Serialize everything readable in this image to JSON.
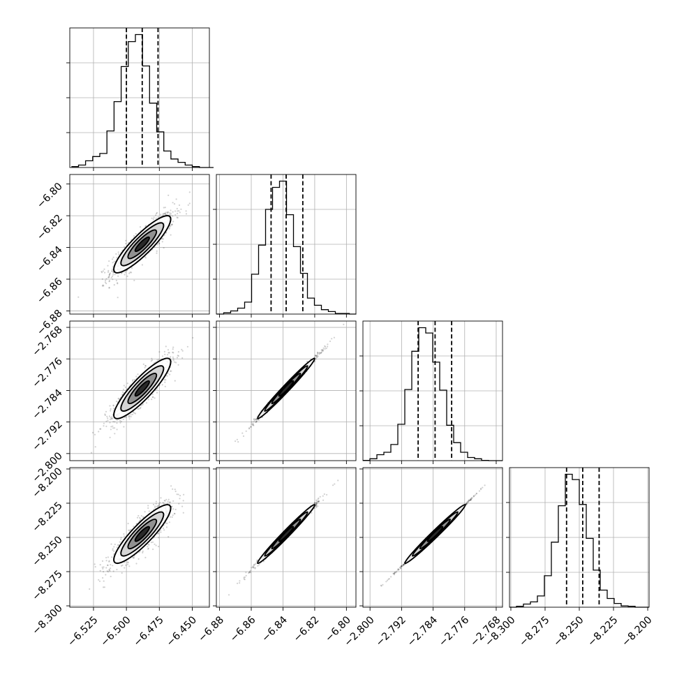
{
  "chart_data": {
    "type": "corner",
    "grid": true,
    "parameters": [
      {
        "ticks": [
          -6.525,
          -6.5,
          -6.475,
          -6.45
        ],
        "tick_labels": [
          "−6.525",
          "−6.500",
          "−6.475",
          "−6.450"
        ],
        "range": [
          -6.543,
          -6.437
        ],
        "quantiles": [
          -6.5,
          -6.488,
          -6.476
        ]
      },
      {
        "ticks": [
          -6.88,
          -6.86,
          -6.84,
          -6.82,
          -6.8
        ],
        "tick_labels": [
          "−6.88",
          "−6.86",
          "−6.84",
          "−6.82",
          "−6.80"
        ],
        "range": [
          -6.882,
          -6.794
        ],
        "quantiles": [
          -6.8475,
          -6.838,
          -6.8275
        ]
      },
      {
        "ticks": [
          -2.8,
          -2.792,
          -2.784,
          -2.776,
          -2.768
        ],
        "tick_labels": [
          "−2.800",
          "−2.792",
          "−2.784",
          "−2.776",
          "−2.768"
        ],
        "range": [
          -2.8018,
          -2.7664
        ],
        "quantiles": [
          -2.7878,
          -2.7835,
          -2.7793
        ]
      },
      {
        "ticks": [
          -8.3,
          -8.275,
          -8.25,
          -8.225,
          -8.2
        ],
        "tick_labels": [
          "−8.300",
          "−8.275",
          "−8.250",
          "−8.225",
          "−8.200"
        ],
        "range": [
          -8.301,
          -8.199
        ],
        "quantiles": [
          -8.2593,
          -8.2475,
          -8.2355
        ]
      }
    ],
    "histograms": [
      {
        "bins": [
          -6.5418,
          -6.5364,
          -6.531,
          -6.5256,
          -6.5202,
          -6.5148,
          -6.5094,
          -6.504,
          -6.4986,
          -6.4932,
          -6.4878,
          -6.4824,
          -6.477,
          -6.4716,
          -6.4662,
          -6.4608,
          -6.4554,
          -6.45,
          -6.4446,
          -6.4392,
          -6.4338
        ],
        "counts": [
          3,
          8,
          22,
          36,
          46,
          120,
          216,
          331,
          413,
          436,
          333,
          211,
          117,
          54,
          28,
          17,
          8,
          3,
          0,
          0
        ]
      },
      {
        "bins": [
          -6.8818,
          -6.8774,
          -6.873,
          -6.8686,
          -6.8642,
          -6.8598,
          -6.8554,
          -6.851,
          -6.8466,
          -6.8422,
          -6.8378,
          -6.8334,
          -6.829,
          -6.8246,
          -6.8202,
          -6.8158,
          -6.8114,
          -6.807,
          -6.8026,
          -6.7982,
          -6.7938
        ],
        "counts": [
          0,
          4,
          10,
          19,
          38,
          127,
          220,
          334,
          404,
          424,
          317,
          215,
          130,
          51,
          28,
          14,
          8,
          2,
          2,
          0
        ]
      },
      {
        "bins": [
          -2.8018,
          -2.80003,
          -2.79826,
          -2.79649,
          -2.79472,
          -2.79295,
          -2.79118,
          -2.78941,
          -2.78764,
          -2.78587,
          -2.7841,
          -2.78233,
          -2.78056,
          -2.77879,
          -2.77702,
          -2.77525,
          -2.77348,
          -2.77171,
          -2.76994,
          -2.76817,
          -2.7664
        ],
        "counts": [
          1,
          6,
          19,
          27,
          52,
          117,
          229,
          352,
          428,
          411,
          317,
          227,
          114,
          58,
          27,
          10,
          6,
          1,
          0,
          0
        ]
      },
      {
        "bins": [
          -8.301,
          -8.2959,
          -8.2908,
          -8.2857,
          -8.2806,
          -8.2755,
          -8.2704,
          -8.2653,
          -8.2602,
          -8.2551,
          -8.25,
          -8.2449,
          -8.2398,
          -8.2347,
          -8.2296,
          -8.2245,
          -8.2194,
          -8.2143,
          -8.2092,
          -8.2041,
          -8.199
        ],
        "counts": [
          0,
          3,
          10,
          17,
          36,
          101,
          209,
          326,
          427,
          410,
          330,
          221,
          119,
          55,
          28,
          12,
          4,
          3,
          0,
          0
        ]
      }
    ],
    "correlations": [
      {
        "row": 1,
        "col": 0,
        "corr": 0.88
      },
      {
        "row": 2,
        "col": 0,
        "corr": 0.88
      },
      {
        "row": 2,
        "col": 1,
        "corr": 0.995
      },
      {
        "row": 3,
        "col": 0,
        "corr": 0.88
      },
      {
        "row": 3,
        "col": 1,
        "corr": 0.995
      },
      {
        "row": 3,
        "col": 2,
        "corr": 0.9995
      }
    ],
    "contour_levels": [
      0.5,
      1.0,
      1.5,
      2.0
    ]
  }
}
